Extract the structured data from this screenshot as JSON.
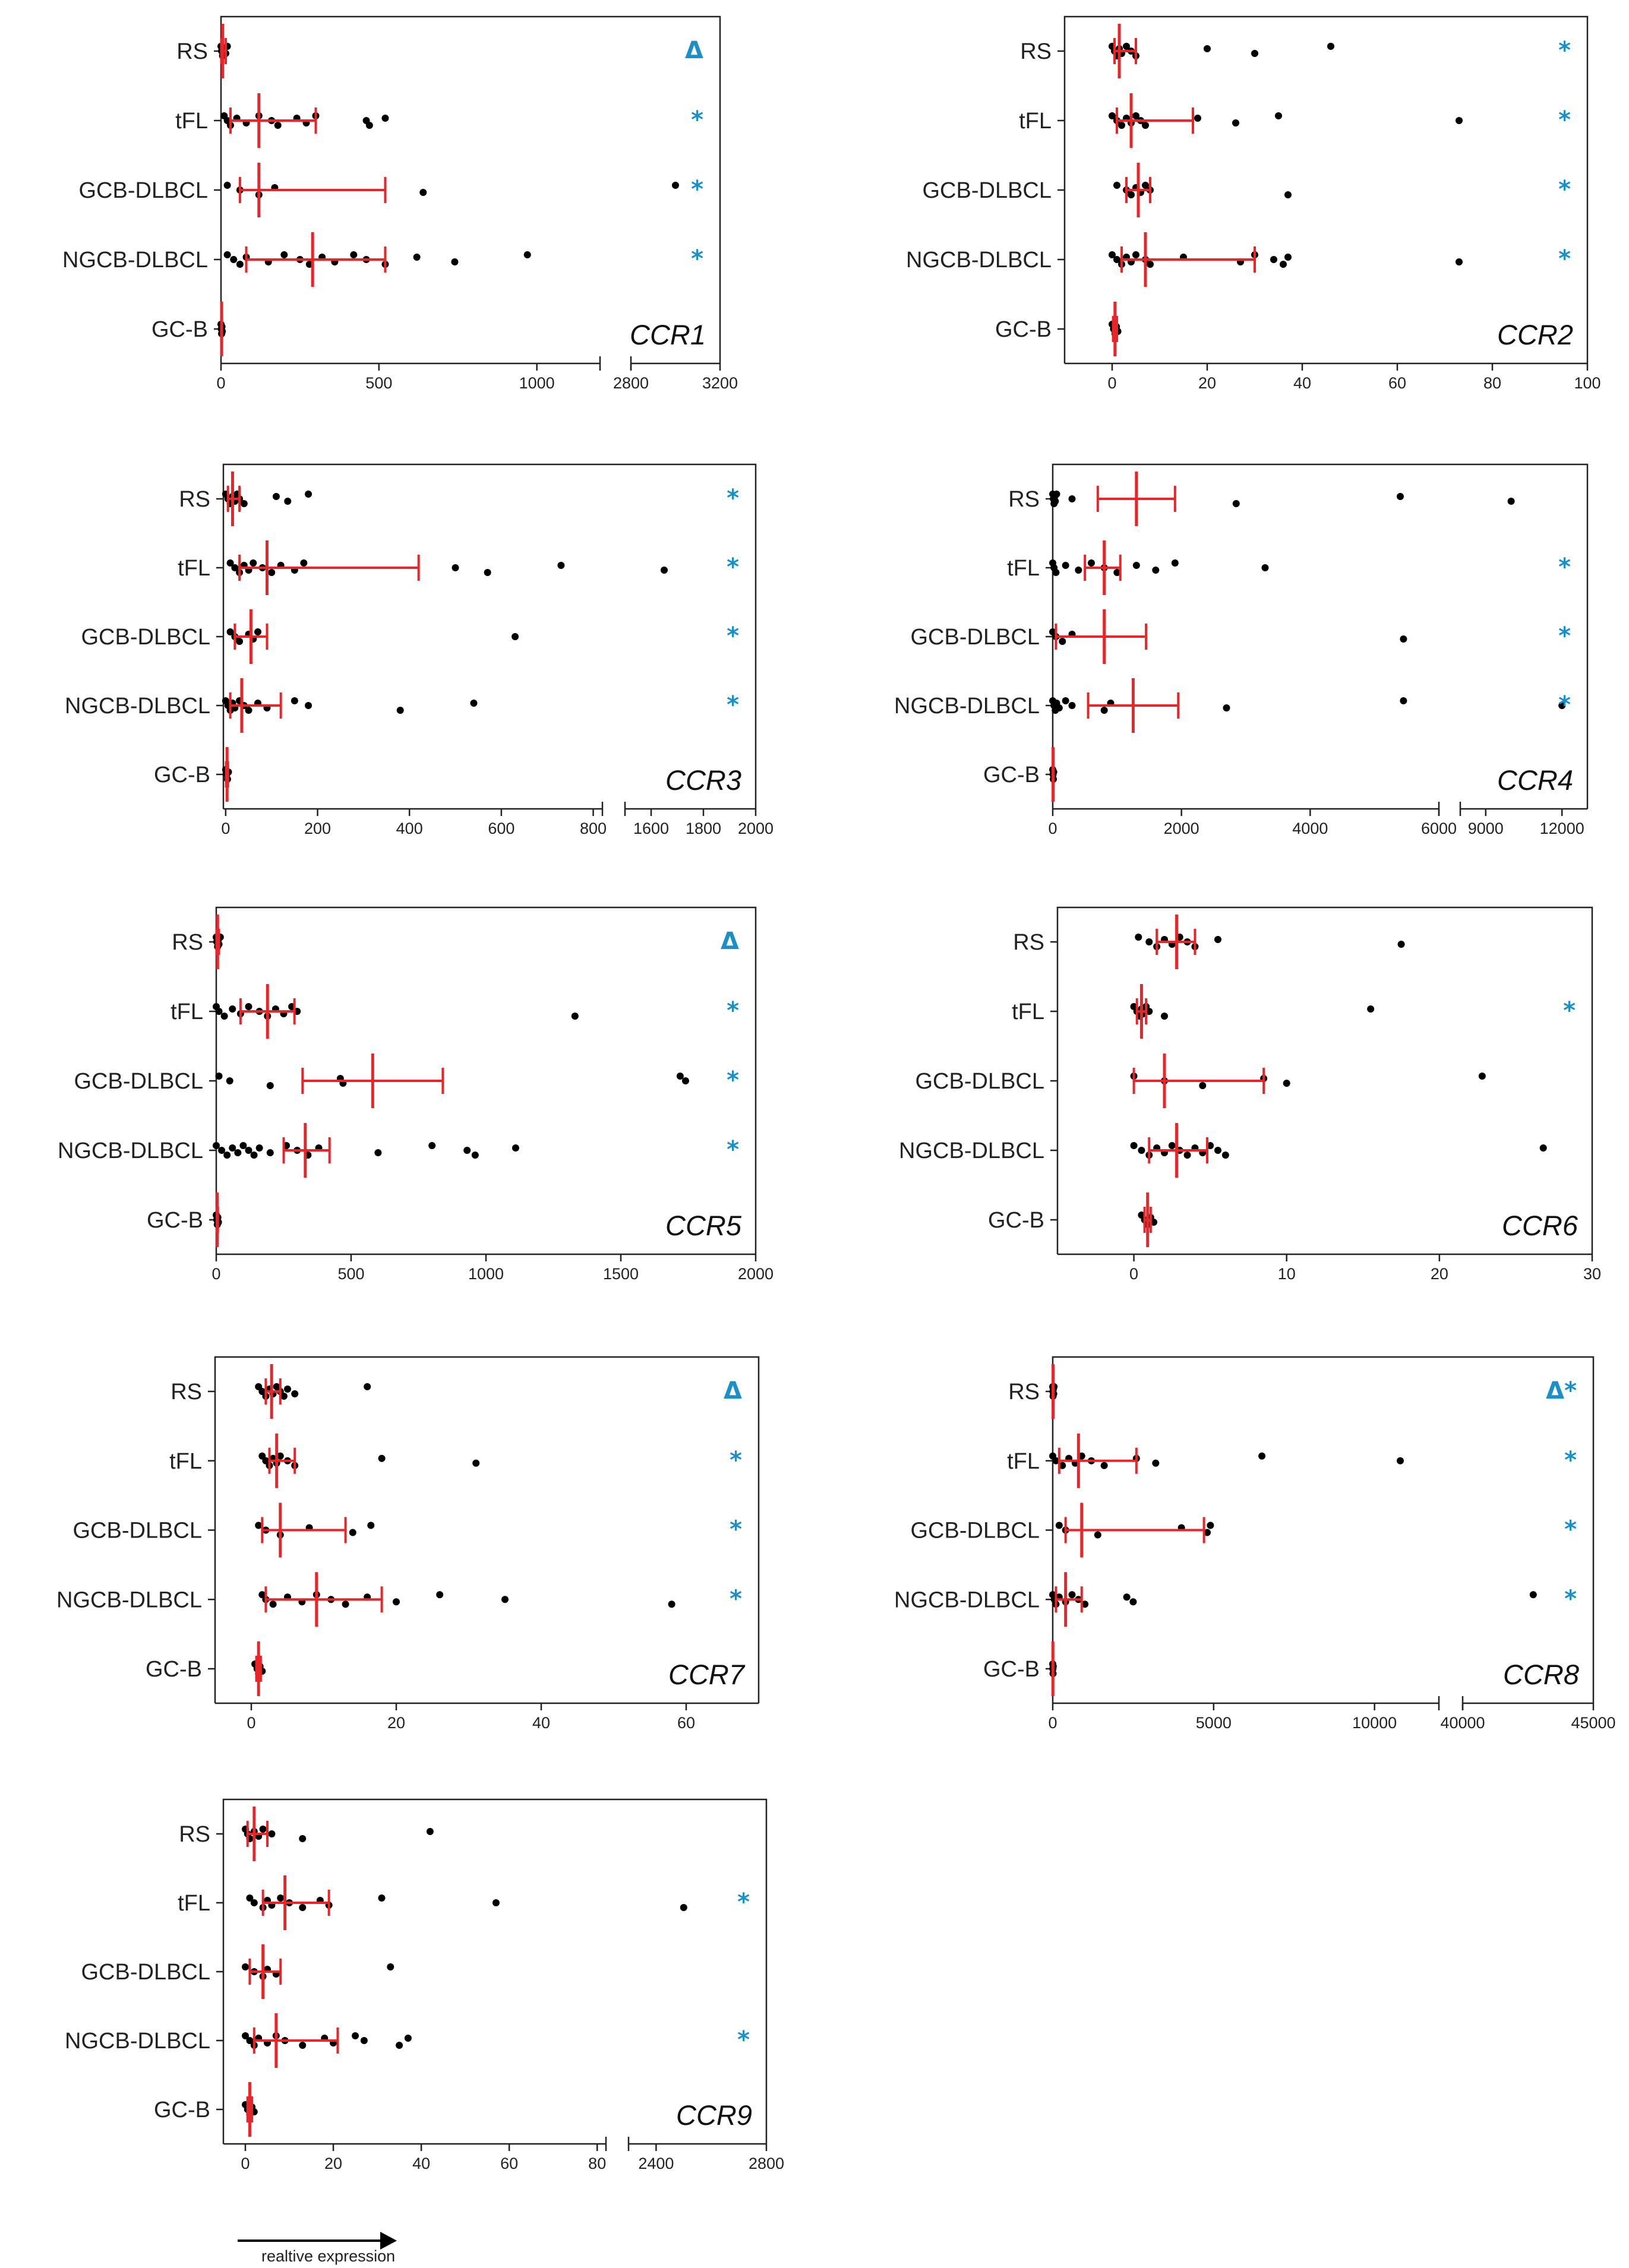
{
  "figure": {
    "caption": "realtive expression",
    "group_labels": [
      "RS",
      "tFL",
      "GCB-DLBCL",
      "NGCB-DLBCL",
      "GC-B"
    ]
  },
  "chart_data": [
    {
      "type": "scatter",
      "gene": "CCR1",
      "categories": [
        "RS",
        "tFL",
        "GCB-DLBCL",
        "NGCB-DLBCL",
        "GC-B"
      ],
      "axis": {
        "segments": [
          [
            0,
            1200
          ],
          [
            2800,
            3200
          ]
        ],
        "ticks": [
          0,
          500,
          1000,
          2800,
          3200
        ]
      },
      "markers": [
        "Δ",
        "*",
        "*",
        "*",
        ""
      ],
      "groups": [
        {
          "name": "RS",
          "points": [
            0,
            2,
            5,
            10,
            15,
            20
          ],
          "median": 5,
          "q1": 1,
          "q3": 15
        },
        {
          "name": "tFL",
          "points": [
            10,
            20,
            30,
            50,
            80,
            120,
            160,
            180,
            240,
            270,
            300,
            460,
            470,
            520
          ],
          "median": 120,
          "q1": 30,
          "q3": 300
        },
        {
          "name": "GCB-DLBCL",
          "points": [
            20,
            60,
            120,
            170,
            640,
            3000
          ],
          "median": 120,
          "q1": 60,
          "q3": 520
        },
        {
          "name": "NGCB-DLBCL",
          "points": [
            20,
            40,
            60,
            80,
            150,
            200,
            250,
            280,
            320,
            360,
            420,
            460,
            520,
            620,
            740,
            970
          ],
          "median": 290,
          "q1": 80,
          "q3": 520
        },
        {
          "name": "GC-B",
          "points": [
            0,
            1,
            2,
            3,
            4
          ],
          "median": 2,
          "q1": 1,
          "q3": 3
        }
      ]
    },
    {
      "type": "scatter",
      "gene": "CCR2",
      "categories": [
        "RS",
        "tFL",
        "GCB-DLBCL",
        "NGCB-DLBCL",
        "GC-B"
      ],
      "axis": {
        "segments": [
          [
            -10,
            100
          ]
        ],
        "ticks": [
          0,
          20,
          40,
          60,
          80,
          100
        ]
      },
      "markers": [
        "*",
        "*",
        "*",
        "*",
        ""
      ],
      "groups": [
        {
          "name": "RS",
          "points": [
            0,
            0.5,
            1,
            1.5,
            2,
            3,
            4,
            5,
            20,
            30,
            46
          ],
          "median": 1.5,
          "q1": 0.5,
          "q3": 5
        },
        {
          "name": "tFL",
          "points": [
            0,
            1,
            2,
            3,
            4,
            5,
            6,
            7,
            18,
            26,
            35,
            73
          ],
          "median": 4,
          "q1": 1,
          "q3": 17
        },
        {
          "name": "GCB-DLBCL",
          "points": [
            1,
            3,
            4,
            5,
            6,
            7,
            8,
            37
          ],
          "median": 5.5,
          "q1": 3,
          "q3": 8
        },
        {
          "name": "NGCB-DLBCL",
          "points": [
            0,
            1,
            2,
            3,
            4,
            5,
            7,
            8,
            15,
            27,
            30,
            34,
            36,
            37,
            73
          ],
          "median": 7,
          "q1": 2,
          "q3": 30
        },
        {
          "name": "GC-B",
          "points": [
            0,
            0.3,
            0.6,
            0.9,
            1.2
          ],
          "median": 0.6,
          "q1": 0.2,
          "q3": 1
        }
      ]
    },
    {
      "type": "scatter",
      "gene": "CCR3",
      "categories": [
        "RS",
        "tFL",
        "GCB-DLBCL",
        "NGCB-DLBCL",
        "GC-B"
      ],
      "axis": {
        "segments": [
          [
            -5,
            820
          ],
          [
            1500,
            2000
          ]
        ],
        "ticks": [
          0,
          200,
          400,
          600,
          800,
          1600,
          1800,
          2000
        ]
      },
      "markers": [
        "*",
        "*",
        "*",
        "*",
        ""
      ],
      "groups": [
        {
          "name": "RS",
          "points": [
            0,
            5,
            10,
            15,
            20,
            25,
            30,
            40,
            110,
            135,
            180
          ],
          "median": 15,
          "q1": 5,
          "q3": 30
        },
        {
          "name": "tFL",
          "points": [
            10,
            20,
            30,
            40,
            50,
            60,
            80,
            100,
            120,
            150,
            170,
            500,
            570,
            730,
            1650
          ],
          "median": 90,
          "q1": 30,
          "q3": 420
        },
        {
          "name": "GCB-DLBCL",
          "points": [
            10,
            20,
            30,
            50,
            60,
            70,
            630
          ],
          "median": 55,
          "q1": 20,
          "q3": 90
        },
        {
          "name": "NGCB-DLBCL",
          "points": [
            0,
            5,
            10,
            15,
            20,
            30,
            40,
            50,
            70,
            90,
            150,
            180,
            380,
            540
          ],
          "median": 35,
          "q1": 10,
          "q3": 120
        },
        {
          "name": "GC-B",
          "points": [
            0,
            2,
            4,
            6
          ],
          "median": 3,
          "q1": 1,
          "q3": 5
        }
      ]
    },
    {
      "type": "scatter",
      "gene": "CCR4",
      "categories": [
        "RS",
        "tFL",
        "GCB-DLBCL",
        "NGCB-DLBCL",
        "GC-B"
      ],
      "axis": {
        "segments": [
          [
            0,
            6000
          ],
          [
            8000,
            13000
          ]
        ],
        "ticks": [
          0,
          2000,
          4000,
          6000,
          9000,
          12000
        ]
      },
      "markers": [
        "",
        "*",
        "*",
        "*",
        ""
      ],
      "groups": [
        {
          "name": "RS",
          "points": [
            0,
            10,
            20,
            30,
            40,
            60,
            300,
            2850,
            5400,
            10000
          ],
          "median": 1300,
          "q1": 700,
          "q3": 1900
        },
        {
          "name": "tFL",
          "points": [
            0,
            20,
            50,
            200,
            400,
            600,
            800,
            1000,
            1300,
            1600,
            1900,
            3300
          ],
          "median": 800,
          "q1": 500,
          "q3": 1050
        },
        {
          "name": "GCB-DLBCL",
          "points": [
            0,
            50,
            150,
            300,
            5450
          ],
          "median": 800,
          "q1": 50,
          "q3": 1450
        },
        {
          "name": "NGCB-DLBCL",
          "points": [
            0,
            20,
            40,
            60,
            100,
            200,
            300,
            800,
            900,
            2700,
            5450,
            12000
          ],
          "median": 1250,
          "q1": 550,
          "q3": 1950
        },
        {
          "name": "GC-B",
          "points": [
            0,
            5,
            10,
            15
          ],
          "median": 5,
          "q1": 2,
          "q3": 10
        }
      ]
    },
    {
      "type": "scatter",
      "gene": "CCR5",
      "categories": [
        "RS",
        "tFL",
        "GCB-DLBCL",
        "NGCB-DLBCL",
        "GC-B"
      ],
      "axis": {
        "segments": [
          [
            0,
            2000
          ]
        ],
        "ticks": [
          0,
          500,
          1000,
          1500,
          2000
        ]
      },
      "markers": [
        "Δ",
        "*",
        "*",
        "*",
        ""
      ],
      "groups": [
        {
          "name": "RS",
          "points": [
            0,
            2,
            5,
            8,
            10,
            15
          ],
          "median": 5,
          "q1": 1,
          "q3": 10
        },
        {
          "name": "tFL",
          "points": [
            0,
            10,
            30,
            60,
            90,
            120,
            160,
            190,
            220,
            250,
            280,
            300,
            1330
          ],
          "median": 190,
          "q1": 90,
          "q3": 290
        },
        {
          "name": "GCB-DLBCL",
          "points": [
            10,
            50,
            200,
            460,
            470,
            1720,
            1740
          ],
          "median": 580,
          "q1": 320,
          "q3": 840
        },
        {
          "name": "NGCB-DLBCL",
          "points": [
            0,
            20,
            40,
            60,
            80,
            100,
            120,
            140,
            160,
            200,
            260,
            300,
            340,
            380,
            600,
            800,
            930,
            960,
            1110
          ],
          "median": 330,
          "q1": 250,
          "q3": 420
        },
        {
          "name": "GC-B",
          "points": [
            0,
            2,
            4,
            6,
            8
          ],
          "median": 4,
          "q1": 2,
          "q3": 6
        }
      ]
    },
    {
      "type": "scatter",
      "gene": "CCR6",
      "categories": [
        "RS",
        "tFL",
        "GCB-DLBCL",
        "NGCB-DLBCL",
        "GC-B"
      ],
      "axis": {
        "segments": [
          [
            -5,
            30
          ]
        ],
        "ticks": [
          0,
          10,
          20,
          30
        ]
      },
      "markers": [
        "",
        "*",
        "",
        "",
        ""
      ],
      "groups": [
        {
          "name": "RS",
          "points": [
            0.3,
            1,
            1.5,
            2,
            2.5,
            3,
            3.5,
            4,
            5.5,
            17.5
          ],
          "median": 2.8,
          "q1": 1.5,
          "q3": 4
        },
        {
          "name": "tFL",
          "points": [
            0,
            0.2,
            0.4,
            0.5,
            0.6,
            0.8,
            1,
            2,
            15.5
          ],
          "median": 0.5,
          "q1": 0.2,
          "q3": 0.8
        },
        {
          "name": "GCB-DLBCL",
          "points": [
            0,
            2,
            4.5,
            8.5,
            10,
            22.8
          ],
          "median": 2,
          "q1": 0,
          "q3": 8.5
        },
        {
          "name": "NGCB-DLBCL",
          "points": [
            0,
            0.5,
            1,
            1.5,
            2,
            2.5,
            3,
            3.5,
            4,
            4.5,
            5,
            5.5,
            6,
            26.8
          ],
          "median": 2.8,
          "q1": 1,
          "q3": 4.8
        },
        {
          "name": "GC-B",
          "points": [
            0.5,
            0.7,
            0.9,
            1.1,
            1.3
          ],
          "median": 0.9,
          "q1": 0.7,
          "q3": 1.1
        }
      ]
    },
    {
      "type": "scatter",
      "gene": "CCR7",
      "categories": [
        "RS",
        "tFL",
        "GCB-DLBCL",
        "NGCB-DLBCL",
        "GC-B"
      ],
      "axis": {
        "segments": [
          [
            -5,
            70
          ]
        ],
        "ticks": [
          0,
          20,
          40,
          60
        ]
      },
      "markers": [
        "Δ",
        "*",
        "*",
        "*",
        ""
      ],
      "groups": [
        {
          "name": "RS",
          "points": [
            1,
            1.5,
            2,
            2.5,
            3,
            3.5,
            4,
            4.5,
            5,
            6,
            16
          ],
          "median": 2.8,
          "q1": 2,
          "q3": 4
        },
        {
          "name": "tFL",
          "points": [
            1.5,
            2,
            2.5,
            3,
            3.5,
            4,
            5,
            6,
            18,
            31
          ],
          "median": 3.5,
          "q1": 2.5,
          "q3": 6
        },
        {
          "name": "GCB-DLBCL",
          "points": [
            1,
            2,
            4,
            8,
            14,
            16.5
          ],
          "median": 4,
          "q1": 1.5,
          "q3": 13
        },
        {
          "name": "NGCB-DLBCL",
          "points": [
            1.5,
            2,
            3,
            5,
            7,
            9,
            11,
            13,
            16,
            20,
            26,
            35,
            58
          ],
          "median": 9,
          "q1": 2,
          "q3": 18
        },
        {
          "name": "GC-B",
          "points": [
            0.5,
            0.8,
            1,
            1.2,
            1.5
          ],
          "median": 1,
          "q1": 0.7,
          "q3": 1.3
        }
      ]
    },
    {
      "type": "scatter",
      "gene": "CCR8",
      "categories": [
        "RS",
        "tFL",
        "GCB-DLBCL",
        "NGCB-DLBCL",
        "GC-B"
      ],
      "axis": {
        "segments": [
          [
            0,
            12000
          ],
          [
            40000,
            45000
          ]
        ],
        "ticks": [
          0,
          5000,
          10000,
          40000,
          45000
        ]
      },
      "markers": [
        "Δ*",
        "*",
        "*",
        "*",
        ""
      ],
      "groups": [
        {
          "name": "RS",
          "points": [
            0,
            5,
            10,
            20,
            30,
            40
          ],
          "median": 10,
          "q1": 5,
          "q3": 20
        },
        {
          "name": "tFL",
          "points": [
            0,
            100,
            300,
            500,
            700,
            900,
            1200,
            1600,
            2600,
            3200,
            6500,
            10800
          ],
          "median": 800,
          "q1": 200,
          "q3": 2600
        },
        {
          "name": "GCB-DLBCL",
          "points": [
            200,
            400,
            1400,
            4000,
            4800,
            4900
          ],
          "median": 900,
          "q1": 400,
          "q3": 4700
        },
        {
          "name": "NGCB-DLBCL",
          "points": [
            0,
            50,
            100,
            200,
            400,
            600,
            800,
            1000,
            2300,
            2500,
            42700
          ],
          "median": 400,
          "q1": 100,
          "q3": 900
        },
        {
          "name": "GC-B",
          "points": [
            0,
            5,
            10,
            15
          ],
          "median": 5,
          "q1": 2,
          "q3": 10
        }
      ]
    },
    {
      "type": "scatter",
      "gene": "CCR9",
      "categories": [
        "RS",
        "tFL",
        "GCB-DLBCL",
        "NGCB-DLBCL",
        "GC-B"
      ],
      "axis": {
        "segments": [
          [
            -5,
            82
          ],
          [
            2300,
            2800
          ]
        ],
        "ticks": [
          0,
          20,
          40,
          60,
          80,
          2400,
          2800
        ]
      },
      "markers": [
        "",
        "*",
        "",
        "*",
        ""
      ],
      "groups": [
        {
          "name": "RS",
          "points": [
            0,
            0.5,
            1,
            2,
            3,
            4,
            6,
            13,
            42
          ],
          "median": 2,
          "q1": 0.5,
          "q3": 5
        },
        {
          "name": "tFL",
          "points": [
            1,
            2,
            4,
            5,
            6,
            8,
            10,
            13,
            17,
            19,
            31,
            57,
            2500
          ],
          "median": 9,
          "q1": 4,
          "q3": 19
        },
        {
          "name": "GCB-DLBCL",
          "points": [
            0,
            2,
            4,
            5,
            7,
            33
          ],
          "median": 4,
          "q1": 1,
          "q3": 8
        },
        {
          "name": "NGCB-DLBCL",
          "points": [
            0,
            1,
            2,
            3,
            5,
            7,
            9,
            13,
            18,
            20,
            25,
            27,
            35,
            37
          ],
          "median": 7,
          "q1": 2,
          "q3": 21
        },
        {
          "name": "GC-B",
          "points": [
            0,
            0.5,
            1,
            1.5,
            2
          ],
          "median": 1,
          "q1": 0.5,
          "q3": 1.5
        }
      ]
    }
  ]
}
